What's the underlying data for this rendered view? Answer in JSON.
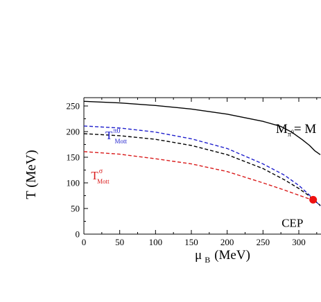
{
  "chart_data": {
    "type": "line",
    "xlabel": "μ",
    "xlabel_sub": "B",
    "xlabel_unit": "(MeV)",
    "ylabel": "T (MeV)",
    "xlim": [
      0,
      330
    ],
    "ylim": [
      0,
      265
    ],
    "xticks": [
      0,
      50,
      100,
      150,
      200,
      250,
      300
    ],
    "yticks": [
      0,
      50,
      100,
      150,
      200,
      250
    ],
    "grid": false,
    "series": [
      {
        "name": "M_π0 = M",
        "color": "#000000",
        "style": "solid",
        "points": [
          [
            0,
            259
          ],
          [
            50,
            256
          ],
          [
            100,
            251
          ],
          [
            150,
            244
          ],
          [
            200,
            234
          ],
          [
            250,
            220
          ],
          [
            275,
            210
          ],
          [
            290,
            199
          ],
          [
            305,
            184
          ],
          [
            315,
            173
          ],
          [
            322,
            163
          ],
          [
            330,
            155
          ]
        ]
      },
      {
        "name": "T^π0_Mott",
        "color": "#1f1fcc",
        "style": "dashed",
        "points": [
          [
            0,
            211
          ],
          [
            50,
            207
          ],
          [
            100,
            199
          ],
          [
            150,
            186
          ],
          [
            200,
            167
          ],
          [
            250,
            137
          ],
          [
            280,
            115
          ],
          [
            300,
            95
          ],
          [
            315,
            76
          ],
          [
            325,
            62
          ],
          [
            330,
            55
          ]
        ]
      },
      {
        "name": "",
        "color": "#000000",
        "style": "dashed",
        "points": [
          [
            0,
            196
          ],
          [
            50,
            192
          ],
          [
            100,
            185
          ],
          [
            150,
            173
          ],
          [
            200,
            155
          ],
          [
            250,
            128
          ],
          [
            280,
            106
          ],
          [
            300,
            89
          ],
          [
            315,
            74
          ],
          [
            325,
            62
          ],
          [
            330,
            56
          ]
        ]
      },
      {
        "name": "T^σ_Mott",
        "color": "#d91a1a",
        "style": "dashed",
        "points": [
          [
            0,
            161
          ],
          [
            50,
            156
          ],
          [
            100,
            147
          ],
          [
            150,
            137
          ],
          [
            200,
            122
          ],
          [
            250,
            100
          ],
          [
            280,
            86
          ],
          [
            300,
            76
          ],
          [
            312,
            70
          ],
          [
            320,
            66
          ]
        ]
      }
    ],
    "point": {
      "name": "CEP",
      "x": 320,
      "y": 67,
      "color": "#ee1111"
    },
    "annotations": [
      {
        "id": "mpi",
        "main": "M",
        "sub": "π",
        "sup": "0",
        "rest": "= M",
        "x": 268,
        "y": 197,
        "color": "#000000"
      },
      {
        "id": "tpi",
        "main": "T",
        "sup": "π0",
        "sub": "Mott",
        "x": 30,
        "y": 185,
        "color": "#1f1fcc"
      },
      {
        "id": "tsig",
        "main": "T",
        "sup": "σ",
        "sub": "Mott",
        "x": 10,
        "y": 107,
        "color": "#d91a1a"
      },
      {
        "id": "cep",
        "main": "CEP",
        "x": 276,
        "y": 14,
        "color": "#000000"
      }
    ]
  }
}
